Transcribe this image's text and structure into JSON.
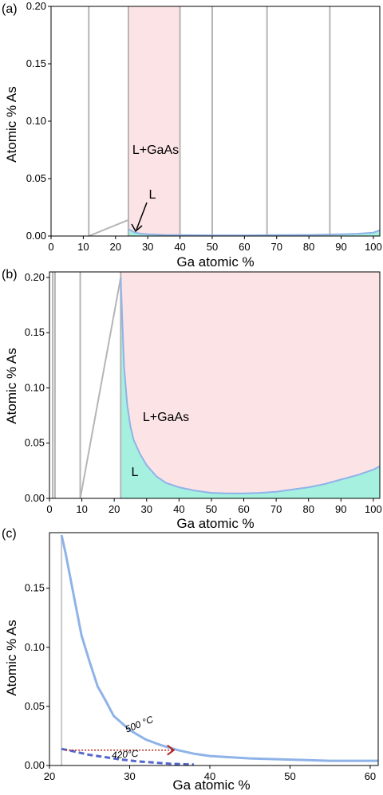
{
  "chart_data": [
    {
      "panel_label": "(a)",
      "type": "area",
      "xlabel": "Ga atomic %",
      "ylabel": "Atomic % As",
      "xlim": [
        0,
        102
      ],
      "ylim": [
        0,
        0.2
      ],
      "xticks": [
        "0",
        "10",
        "20",
        "30",
        "40",
        "50",
        "60",
        "70",
        "80",
        "90",
        "100"
      ],
      "yticks": [
        "0.00",
        "0.05",
        "0.10",
        "0.15",
        "0.20"
      ],
      "vertical_lines": [
        11.7,
        24,
        40,
        50,
        67,
        86.5
      ],
      "highlight_band": [
        24,
        40
      ],
      "liquidus": {
        "x": [
          24,
          26,
          28,
          30,
          35,
          40,
          50,
          60,
          70,
          80,
          90,
          95,
          100,
          102
        ],
        "y": [
          0.006,
          0.003,
          0.002,
          0.0015,
          0.001,
          0.0008,
          0.0006,
          0.0006,
          0.0008,
          0.001,
          0.0015,
          0.002,
          0.003,
          0.005
        ]
      },
      "triangle": {
        "x": [
          11.7,
          24,
          24
        ],
        "y": [
          0,
          0.014,
          0
        ]
      },
      "region_labels": [
        "L+GaAs",
        "L"
      ],
      "colors": {
        "band": "#fce3e6",
        "liquid": "#a6f0e0",
        "curve": "#8fb3e8",
        "grid": "#b5b5b5"
      }
    },
    {
      "panel_label": "(b)",
      "type": "area",
      "xlabel": "Ga atomic %",
      "ylabel": "Atomic % As",
      "xlim": [
        0,
        102
      ],
      "ylim": [
        0,
        0.205
      ],
      "xticks": [
        "0",
        "10",
        "20",
        "30",
        "40",
        "50",
        "60",
        "70",
        "80",
        "90",
        "100"
      ],
      "yticks": [
        "0.00",
        "0.05",
        "0.10",
        "0.15",
        "0.20"
      ],
      "vertical_lines": [
        1,
        1.7,
        9.5,
        22
      ],
      "zigzag": {
        "x": [
          9.5,
          22
        ],
        "y": [
          0,
          0.2
        ]
      },
      "liquidus": {
        "x": [
          22,
          23,
          24,
          25,
          26,
          28,
          30,
          33,
          36,
          40,
          45,
          50,
          55,
          60,
          65,
          70,
          75,
          80,
          85,
          90,
          95,
          100,
          102
        ],
        "y": [
          0.2,
          0.12,
          0.085,
          0.065,
          0.053,
          0.04,
          0.03,
          0.02,
          0.014,
          0.01,
          0.007,
          0.005,
          0.0045,
          0.0045,
          0.005,
          0.006,
          0.008,
          0.01,
          0.013,
          0.017,
          0.021,
          0.026,
          0.029
        ]
      },
      "region_labels": [
        "L+GaAs",
        "L"
      ],
      "colors": {
        "band": "#fce3e6",
        "liquid": "#a6f0e0",
        "curve": "#8fb3e8",
        "grid": "#b5b5b5"
      }
    },
    {
      "panel_label": "(c)",
      "type": "line",
      "xlabel": "Ga atomic %",
      "ylabel": "Atomic % As",
      "xlim": [
        20,
        61
      ],
      "ylim": [
        0,
        0.197
      ],
      "xticks": [
        "20",
        "30",
        "40",
        "50",
        "60"
      ],
      "yticks": [
        "0.00",
        "0.05",
        "0.10",
        "0.15"
      ],
      "vertical_lines": [
        21.5
      ],
      "series": [
        {
          "name": "500 °C",
          "x": [
            21.5,
            22,
            23,
            24,
            25,
            26,
            27,
            28,
            30,
            32,
            34,
            36,
            38,
            40,
            45,
            50,
            55,
            61
          ],
          "y": [
            0.195,
            0.18,
            0.145,
            0.11,
            0.088,
            0.067,
            0.055,
            0.042,
            0.03,
            0.022,
            0.017,
            0.013,
            0.01,
            0.008,
            0.006,
            0.005,
            0.004,
            0.004
          ],
          "style": "solid"
        },
        {
          "name": "420°C",
          "x": [
            21.5,
            23,
            25,
            27,
            29,
            31,
            33,
            35,
            37,
            38
          ],
          "y": [
            0.014,
            0.012,
            0.009,
            0.007,
            0.005,
            0.0035,
            0.0025,
            0.0015,
            0.001,
            0.0008
          ],
          "style": "dashed"
        }
      ],
      "arrow": {
        "x": [
          22,
          35.5
        ],
        "y": [
          0.013,
          0.013
        ]
      },
      "colors": {
        "solid": "#8fb3e8",
        "dashed": "#5566cc",
        "arrow": "#b3231e",
        "grid": "#c8c8c8"
      }
    }
  ]
}
